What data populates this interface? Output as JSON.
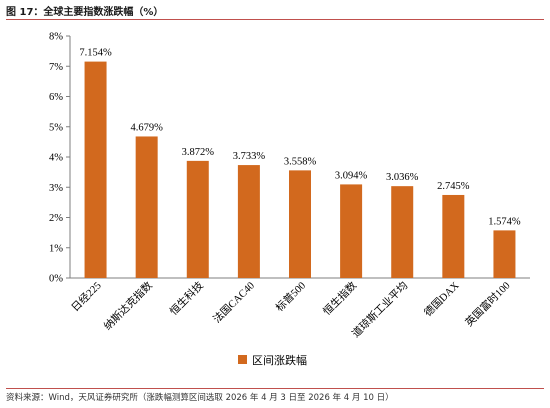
{
  "figure": {
    "title": "图 17：全球主要指数涨跌幅（%）",
    "source": "资料来源：Wind，天风证券研究所（涨跌幅测算区间选取 2026 年 4 月 3 日至 2026 年 4 月 10 日）"
  },
  "colors": {
    "bar": "#d2691e",
    "axis": "#7f7f7f",
    "rule": "#c0504d"
  },
  "chart_data": {
    "type": "bar",
    "categories": [
      "日经225",
      "纳斯达克指数",
      "恒生科技",
      "法国CAC40",
      "标普500",
      "恒生指数",
      "道琼斯工业平均",
      "德国DAX",
      "英国富时100"
    ],
    "series": [
      {
        "name": "区间涨跌幅",
        "values": [
          7.154,
          4.679,
          3.872,
          3.733,
          3.558,
          3.094,
          3.036,
          2.745,
          1.574
        ]
      }
    ],
    "value_labels": [
      "7.154%",
      "4.679%",
      "3.872%",
      "3.733%",
      "3.558%",
      "3.094%",
      "3.036%",
      "2.745%",
      "1.574%"
    ],
    "yticks": [
      "0%",
      "1%",
      "2%",
      "3%",
      "4%",
      "5%",
      "6%",
      "7%",
      "8%"
    ],
    "ylim": [
      0,
      8
    ],
    "legend_position": "bottom-center",
    "grid": false
  }
}
